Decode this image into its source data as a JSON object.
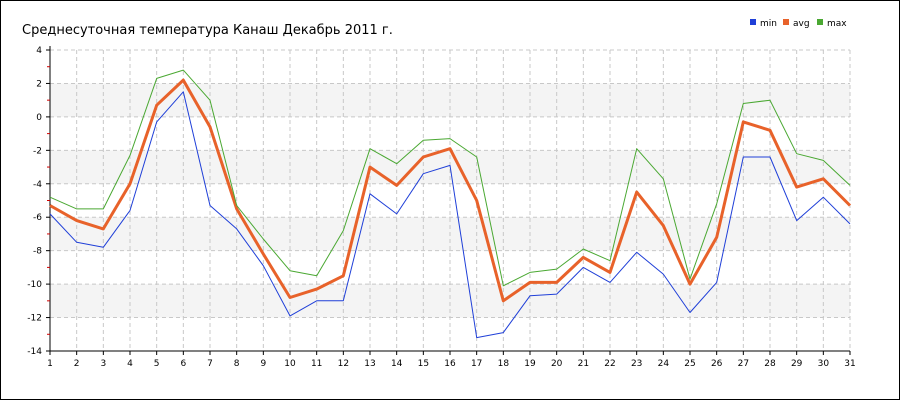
{
  "chart_data": {
    "type": "line",
    "title": "Среднесуточная температура Канаш  Декабрь 2011 г.",
    "xlabel": "",
    "ylabel": "",
    "x": [
      1,
      2,
      3,
      4,
      5,
      6,
      7,
      8,
      9,
      10,
      11,
      12,
      13,
      14,
      15,
      16,
      17,
      18,
      19,
      20,
      21,
      22,
      23,
      24,
      25,
      26,
      27,
      28,
      29,
      30,
      31
    ],
    "xlim": [
      1,
      31
    ],
    "ylim": [
      -14,
      4
    ],
    "y_ticks": [
      4,
      2,
      0,
      -2,
      -4,
      -6,
      -8,
      -10,
      -12,
      -14
    ],
    "grid": true,
    "legend_position": "top-right",
    "series": [
      {
        "name": "min",
        "color": "#1f3fd8",
        "values": [
          -5.8,
          -7.5,
          -7.8,
          -5.6,
          -0.3,
          1.5,
          -5.3,
          -6.7,
          -8.9,
          -11.9,
          -11.0,
          -11.0,
          -4.6,
          -5.8,
          -3.4,
          -2.9,
          -13.2,
          -12.9,
          -10.7,
          -10.6,
          -9.0,
          -9.9,
          -8.1,
          -9.4,
          -11.7,
          -9.9,
          -2.4,
          -2.4,
          -6.2,
          -4.8,
          -6.4
        ]
      },
      {
        "name": "avg",
        "color": "#e8622a",
        "values": [
          -5.3,
          -6.2,
          -6.7,
          -4.0,
          0.7,
          2.2,
          -0.6,
          -5.5,
          -8.2,
          -10.8,
          -10.3,
          -9.5,
          -3.0,
          -4.1,
          -2.4,
          -1.9,
          -5.0,
          -11.0,
          -9.9,
          -9.9,
          -8.4,
          -9.3,
          -4.5,
          -6.5,
          -10.0,
          -7.2,
          -0.3,
          -0.8,
          -4.2,
          -3.7,
          -5.3
        ]
      },
      {
        "name": "max",
        "color": "#4aa832",
        "values": [
          -4.8,
          -5.5,
          -5.5,
          -2.3,
          2.3,
          2.8,
          1.0,
          -5.3,
          -7.3,
          -9.2,
          -9.5,
          -6.8,
          -1.9,
          -2.8,
          -1.4,
          -1.3,
          -2.4,
          -10.1,
          -9.3,
          -9.1,
          -7.9,
          -8.6,
          -1.9,
          -3.7,
          -9.7,
          -5.2,
          0.8,
          1.0,
          -2.2,
          -2.6,
          -4.1
        ]
      }
    ]
  }
}
